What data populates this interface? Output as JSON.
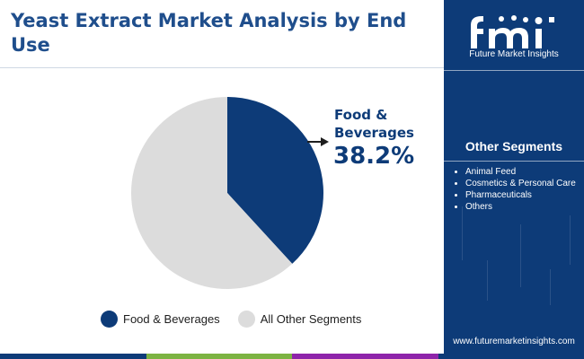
{
  "title": "Yeast Extract Market Analysis by End Use",
  "chart_data": {
    "type": "pie",
    "title": "Yeast Extract Market Analysis by End Use",
    "slices": [
      {
        "label": "Food & Beverages",
        "value": 38.2,
        "color": "#0d3b78"
      },
      {
        "label": "All Other Segments",
        "value": 61.8,
        "color": "#dcdcdc"
      }
    ],
    "annotations": [
      {
        "label": "Food & Beverages",
        "value_text": "38.2%"
      }
    ],
    "legend_position": "bottom"
  },
  "callout": {
    "label": "Food & Beverages",
    "value": "38.2%"
  },
  "legend": [
    {
      "label": "Food & Beverages",
      "color": "#0d3b78"
    },
    {
      "label": "All Other Segments",
      "color": "#dcdcdc"
    }
  ],
  "sidebar": {
    "logo_text": "Future Market Insights",
    "segments_title": "Other Segments",
    "segments": [
      "Animal Feed",
      "Cosmetics & Personal Care",
      "Pharmaceuticals",
      "Others"
    ],
    "url": "www.futuremarketinsights.com",
    "background_color": "#0d3b78"
  },
  "footer_colors": [
    "#0d3b78",
    "#7cb342",
    "#8e24aa",
    "#0d3b78"
  ],
  "icons": [
    "fmi-logo-icon",
    "arrow-right-icon"
  ]
}
